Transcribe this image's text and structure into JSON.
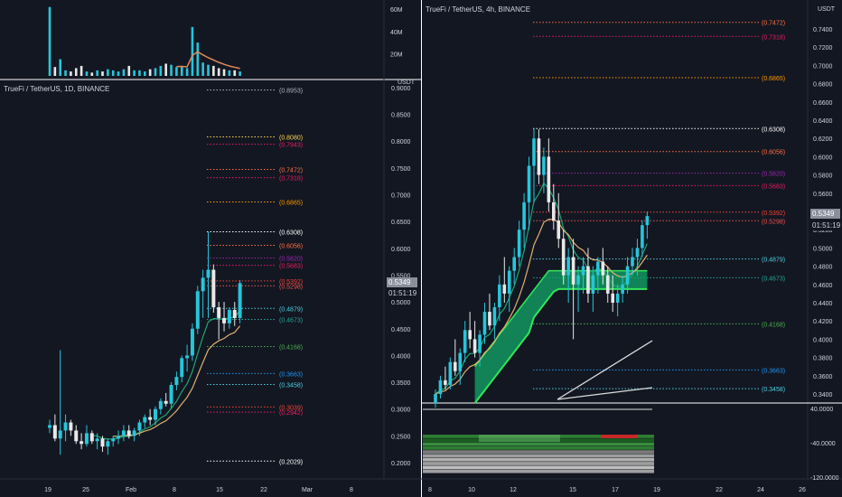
{
  "colors": {
    "bg": "#131722",
    "up": "#26c6da",
    "down": "#e8e8e8",
    "grid_line": "#2a2e39",
    "text": "#d1d4dc",
    "price_tag_bg": "#8a8f9c",
    "ema_fast": "#1ea672",
    "ema_slow": "#e0b070",
    "cloud": "#12a868",
    "cloud_edge": "#35e65a",
    "vol_ma": "#e08a5a",
    "white_line": "#dddddd"
  },
  "left_panel": {
    "title": "TrueFi / TetherUS, 1D, BINANCE",
    "axis_unit": "USDT",
    "price_tag": "0.5349",
    "countdown": "01:51:19",
    "volume_ticks": [
      "60M",
      "40M",
      "20M"
    ],
    "price_ticks": [
      "0.9000",
      "0.8500",
      "0.8000",
      "0.7500",
      "0.7000",
      "0.6500",
      "0.6000",
      "0.5500",
      "0.5000",
      "0.4500",
      "0.4000",
      "0.3500",
      "0.3000",
      "0.2500",
      "0.2000"
    ],
    "date_ticks": [
      "19",
      "25",
      "Feb",
      "8",
      "15",
      "22",
      "Mar",
      "8"
    ],
    "fib_levels": [
      {
        "label": "(0.8953)",
        "value": 0.8953,
        "color": "#b2b5be"
      },
      {
        "label": "(0.8080)",
        "value": 0.808,
        "color": "#ffd54f"
      },
      {
        "label": "(0.7943)",
        "value": 0.7943,
        "color": "#e91e63"
      },
      {
        "label": "(0.7472)",
        "value": 0.7472,
        "color": "#ff7043"
      },
      {
        "label": "(0.7318)",
        "value": 0.7318,
        "color": "#e91e63"
      },
      {
        "label": "(0.6865)",
        "value": 0.6865,
        "color": "#ff9800"
      },
      {
        "label": "(0.6308)",
        "value": 0.6308,
        "color": "#ffffff"
      },
      {
        "label": "(0.6056)",
        "value": 0.6056,
        "color": "#ff7043"
      },
      {
        "label": "(0.5820)",
        "value": 0.582,
        "color": "#9c27b0"
      },
      {
        "label": "(0.5683)",
        "value": 0.5683,
        "color": "#e91e63"
      },
      {
        "label": "(0.5392)",
        "value": 0.5392,
        "color": "#f44336"
      },
      {
        "label": "(0.5298)",
        "value": 0.5298,
        "color": "#ef5350"
      },
      {
        "label": "(0.4879)",
        "value": 0.4879,
        "color": "#4dd0e1"
      },
      {
        "label": "(0.4673)",
        "value": 0.4673,
        "color": "#26a69a"
      },
      {
        "label": "(0.4168)",
        "value": 0.4168,
        "color": "#4caf50"
      },
      {
        "label": "(0.3663)",
        "value": 0.3663,
        "color": "#2196f3"
      },
      {
        "label": "(0.3458)",
        "value": 0.3458,
        "color": "#4dd0e1"
      },
      {
        "label": "(0.3039)",
        "value": 0.3039,
        "color": "#f44336"
      },
      {
        "label": "(0.2942)",
        "value": 0.2942,
        "color": "#e91e63"
      },
      {
        "label": "(0.2029)",
        "value": 0.2029,
        "color": "#ffffff"
      }
    ]
  },
  "right_panel": {
    "title": "TrueFi / TetherUS, 4h, BINANCE",
    "axis_unit": "USDT",
    "price_tag": "0.5349",
    "countdown": "01:51:19",
    "price_ticks": [
      "0.7400",
      "0.7200",
      "0.7000",
      "0.6800",
      "0.6600",
      "0.6400",
      "0.6200",
      "0.6000",
      "0.5800",
      "0.5600",
      "0.5400",
      "0.5200",
      "0.5000",
      "0.4800",
      "0.4600",
      "0.4400",
      "0.4200",
      "0.4000",
      "0.3800",
      "0.3600",
      "0.3400"
    ],
    "date_ticks": [
      "8",
      "10",
      "12",
      "15",
      "17",
      "19",
      "22",
      "24",
      "26"
    ],
    "osc_ticks": [
      "40.0000",
      "-40.0000",
      "-120.0000"
    ],
    "fib_levels": [
      {
        "label": "(0.7472)",
        "value": 0.7472,
        "color": "#ff7043"
      },
      {
        "label": "(0.7318)",
        "value": 0.7318,
        "color": "#e91e63"
      },
      {
        "label": "(0.6865)",
        "value": 0.6865,
        "color": "#ff9800"
      },
      {
        "label": "(0.6308)",
        "value": 0.6308,
        "color": "#ffffff"
      },
      {
        "label": "(0.6056)",
        "value": 0.6056,
        "color": "#ff7043"
      },
      {
        "label": "(0.5820)",
        "value": 0.582,
        "color": "#9c27b0"
      },
      {
        "label": "(0.5683)",
        "value": 0.5683,
        "color": "#e91e63"
      },
      {
        "label": "(0.5392)",
        "value": 0.5392,
        "color": "#f44336"
      },
      {
        "label": "(0.5298)",
        "value": 0.5298,
        "color": "#ef5350"
      },
      {
        "label": "(0.4879)",
        "value": 0.4879,
        "color": "#4dd0e1"
      },
      {
        "label": "(0.4673)",
        "value": 0.4673,
        "color": "#26a69a"
      },
      {
        "label": "(0.4168)",
        "value": 0.4168,
        "color": "#4caf50"
      },
      {
        "label": "(0.3663)",
        "value": 0.3663,
        "color": "#2196f3"
      },
      {
        "label": "(0.3458)",
        "value": 0.3458,
        "color": "#4dd0e1"
      }
    ]
  },
  "chart_data": [
    {
      "type": "candlestick",
      "title": "TrueFi / TetherUS, 1D, BINANCE",
      "ylabel": "USDT",
      "ylim": [
        0.18,
        0.91
      ],
      "x_ticks": [
        "19",
        "25",
        "Feb",
        "8",
        "15",
        "22",
        "Mar",
        "8"
      ],
      "ohlc": [
        [
          0.265,
          0.28,
          0.255,
          0.27
        ],
        [
          0.27,
          0.29,
          0.24,
          0.245
        ],
        [
          0.245,
          0.41,
          0.215,
          0.26
        ],
        [
          0.26,
          0.29,
          0.24,
          0.275
        ],
        [
          0.275,
          0.28,
          0.25,
          0.26
        ],
        [
          0.26,
          0.27,
          0.235,
          0.24
        ],
        [
          0.24,
          0.255,
          0.225,
          0.235
        ],
        [
          0.235,
          0.27,
          0.23,
          0.255
        ],
        [
          0.255,
          0.26,
          0.235,
          0.24
        ],
        [
          0.24,
          0.255,
          0.225,
          0.245
        ],
        [
          0.245,
          0.25,
          0.22,
          0.23
        ],
        [
          0.23,
          0.245,
          0.215,
          0.24
        ],
        [
          0.24,
          0.25,
          0.23,
          0.245
        ],
        [
          0.245,
          0.26,
          0.235,
          0.25
        ],
        [
          0.25,
          0.27,
          0.24,
          0.26
        ],
        [
          0.26,
          0.27,
          0.245,
          0.25
        ],
        [
          0.25,
          0.265,
          0.24,
          0.26
        ],
        [
          0.26,
          0.28,
          0.25,
          0.275
        ],
        [
          0.275,
          0.29,
          0.265,
          0.285
        ],
        [
          0.285,
          0.3,
          0.27,
          0.28
        ],
        [
          0.28,
          0.305,
          0.27,
          0.3
        ],
        [
          0.3,
          0.32,
          0.29,
          0.315
        ],
        [
          0.315,
          0.33,
          0.305,
          0.31
        ],
        [
          0.31,
          0.35,
          0.3,
          0.345
        ],
        [
          0.345,
          0.37,
          0.335,
          0.36
        ],
        [
          0.36,
          0.4,
          0.35,
          0.395
        ],
        [
          0.395,
          0.42,
          0.37,
          0.4
        ],
        [
          0.4,
          0.46,
          0.39,
          0.45
        ],
        [
          0.45,
          0.53,
          0.44,
          0.52
        ],
        [
          0.52,
          0.56,
          0.47,
          0.545
        ],
        [
          0.545,
          0.6308,
          0.47,
          0.56
        ],
        [
          0.56,
          0.57,
          0.48,
          0.49
        ],
        [
          0.49,
          0.5,
          0.43,
          0.47
        ],
        [
          0.47,
          0.5,
          0.445,
          0.46
        ],
        [
          0.46,
          0.49,
          0.45,
          0.485
        ],
        [
          0.485,
          0.5,
          0.455,
          0.47
        ],
        [
          0.47,
          0.54,
          0.46,
          0.5349
        ]
      ],
      "volume_M": [
        62,
        8,
        15,
        5,
        4,
        7,
        9,
        4,
        3,
        5,
        4,
        6,
        5,
        4,
        6,
        9,
        5,
        5,
        4,
        6,
        7,
        9,
        11,
        10,
        8,
        9,
        7,
        44,
        30,
        12,
        10,
        9,
        7,
        6,
        5,
        5,
        4
      ],
      "fib_levels": [
        0.8953,
        0.808,
        0.7943,
        0.7472,
        0.7318,
        0.6865,
        0.6308,
        0.6056,
        0.582,
        0.5683,
        0.5392,
        0.5298,
        0.4879,
        0.4673,
        0.4168,
        0.3663,
        0.3458,
        0.3039,
        0.2942,
        0.2029
      ],
      "last_price": 0.5349
    },
    {
      "type": "candlestick",
      "title": "TrueFi / TetherUS, 4h, BINANCE",
      "ylabel": "USDT",
      "ylim": [
        0.33,
        0.755
      ],
      "x_ticks": [
        "8",
        "10",
        "12",
        "15",
        "17",
        "19",
        "22",
        "24",
        "26"
      ],
      "ohlc": [
        [
          0.33,
          0.345,
          0.325,
          0.34
        ],
        [
          0.34,
          0.36,
          0.335,
          0.355
        ],
        [
          0.355,
          0.37,
          0.345,
          0.35
        ],
        [
          0.35,
          0.38,
          0.345,
          0.375
        ],
        [
          0.375,
          0.4,
          0.36,
          0.365
        ],
        [
          0.365,
          0.39,
          0.35,
          0.385
        ],
        [
          0.385,
          0.42,
          0.375,
          0.41
        ],
        [
          0.41,
          0.43,
          0.39,
          0.4
        ],
        [
          0.4,
          0.42,
          0.38,
          0.385
        ],
        [
          0.385,
          0.41,
          0.37,
          0.405
        ],
        [
          0.405,
          0.44,
          0.395,
          0.43
        ],
        [
          0.43,
          0.45,
          0.41,
          0.415
        ],
        [
          0.415,
          0.44,
          0.4,
          0.435
        ],
        [
          0.435,
          0.47,
          0.42,
          0.46
        ],
        [
          0.46,
          0.49,
          0.44,
          0.45
        ],
        [
          0.45,
          0.48,
          0.43,
          0.475
        ],
        [
          0.475,
          0.5,
          0.46,
          0.49
        ],
        [
          0.49,
          0.53,
          0.48,
          0.52
        ],
        [
          0.52,
          0.56,
          0.5,
          0.55
        ],
        [
          0.55,
          0.6,
          0.52,
          0.59
        ],
        [
          0.59,
          0.6308,
          0.55,
          0.62
        ],
        [
          0.62,
          0.63,
          0.57,
          0.58
        ],
        [
          0.58,
          0.61,
          0.56,
          0.6
        ],
        [
          0.6,
          0.62,
          0.54,
          0.55
        ],
        [
          0.55,
          0.57,
          0.52,
          0.53
        ],
        [
          0.53,
          0.56,
          0.5,
          0.51
        ],
        [
          0.51,
          0.52,
          0.46,
          0.47
        ],
        [
          0.47,
          0.5,
          0.44,
          0.49
        ],
        [
          0.49,
          0.51,
          0.4,
          0.46
        ],
        [
          0.46,
          0.48,
          0.43,
          0.47
        ],
        [
          0.47,
          0.49,
          0.45,
          0.48
        ],
        [
          0.48,
          0.5,
          0.44,
          0.45
        ],
        [
          0.45,
          0.48,
          0.43,
          0.47
        ],
        [
          0.47,
          0.49,
          0.45,
          0.485
        ],
        [
          0.485,
          0.5,
          0.46,
          0.47
        ],
        [
          0.47,
          0.48,
          0.44,
          0.45
        ],
        [
          0.45,
          0.47,
          0.43,
          0.44
        ],
        [
          0.44,
          0.46,
          0.425,
          0.45
        ],
        [
          0.45,
          0.47,
          0.44,
          0.46
        ],
        [
          0.46,
          0.49,
          0.45,
          0.48
        ],
        [
          0.48,
          0.5,
          0.47,
          0.49
        ],
        [
          0.49,
          0.51,
          0.47,
          0.5
        ],
        [
          0.5,
          0.53,
          0.49,
          0.525
        ],
        [
          0.525,
          0.54,
          0.51,
          0.5349
        ]
      ],
      "fib_levels": [
        0.7472,
        0.7318,
        0.6865,
        0.6308,
        0.6056,
        0.582,
        0.5683,
        0.5392,
        0.5298,
        0.4879,
        0.4673,
        0.4168,
        0.3663,
        0.3458
      ],
      "last_price": 0.5349
    }
  ]
}
